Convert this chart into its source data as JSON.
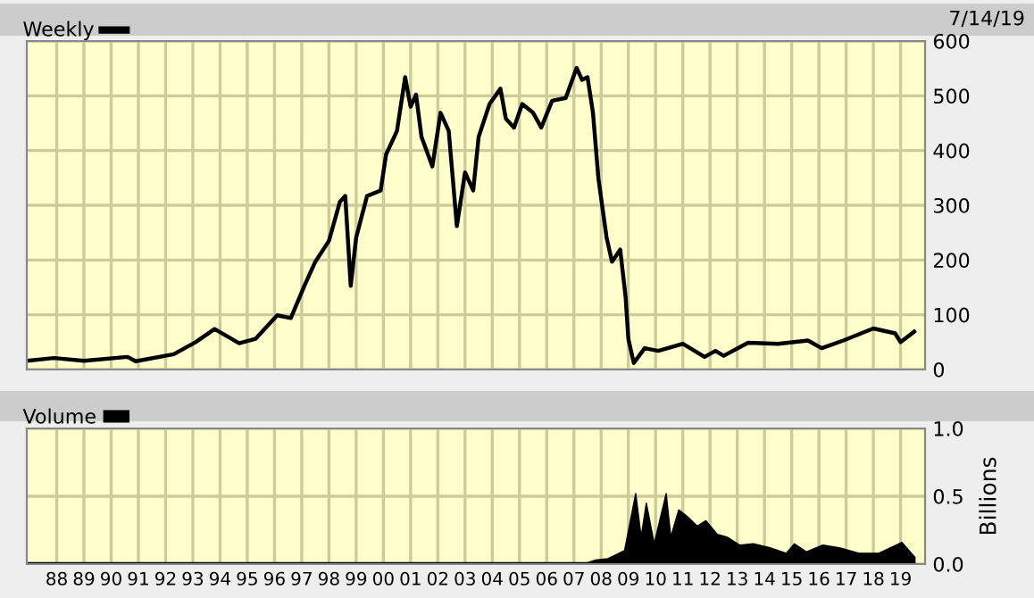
{
  "chart_data": [
    {
      "type": "line",
      "annotations": [
        "7/14/19"
      ],
      "legend": "top left",
      "grid": true,
      "tick_labels": "y",
      "xlim": [
        1986.9,
        2019.9
      ],
      "ylim": [
        0,
        600
      ],
      "yticks": [
        0,
        100,
        200,
        300,
        400,
        500,
        600
      ],
      "xticks": [
        {
          "value": 1988,
          "label": null
        },
        {
          "value": 1989,
          "label": null
        },
        {
          "value": 1990,
          "label": null
        },
        {
          "value": 1991,
          "label": null
        },
        {
          "value": 1992,
          "label": null
        },
        {
          "value": 1993,
          "label": null
        },
        {
          "value": 1994,
          "label": null
        },
        {
          "value": 1995,
          "label": null
        },
        {
          "value": 1996,
          "label": null
        },
        {
          "value": 1997,
          "label": null
        },
        {
          "value": 1998,
          "label": null
        },
        {
          "value": 1999,
          "label": null
        },
        {
          "value": 2000,
          "label": null
        },
        {
          "value": 2001,
          "label": null
        },
        {
          "value": 2002,
          "label": null
        },
        {
          "value": 2003,
          "label": null
        },
        {
          "value": 2004,
          "label": null
        },
        {
          "value": 2005,
          "label": null
        },
        {
          "value": 2006,
          "label": null
        },
        {
          "value": 2007,
          "label": null
        },
        {
          "value": 2008,
          "label": null
        },
        {
          "value": 2009,
          "label": null
        },
        {
          "value": 2010,
          "label": null
        },
        {
          "value": 2011,
          "label": null
        },
        {
          "value": 2012,
          "label": null
        },
        {
          "value": 2013,
          "label": null
        },
        {
          "value": 2014,
          "label": null
        },
        {
          "value": 2015,
          "label": null
        },
        {
          "value": 2016,
          "label": null
        },
        {
          "value": 2017,
          "label": null
        },
        {
          "value": 2018,
          "label": null
        },
        {
          "value": 2019,
          "label": null
        }
      ],
      "series": [
        {
          "name": "Weekly",
          "color": "#000000",
          "x": [
            1986.9,
            1987.9,
            1989.0,
            1990.6,
            1990.9,
            1992.3,
            1993.1,
            1993.8,
            1994.7,
            1995.3,
            1996.1,
            1996.6,
            1997.1,
            1997.5,
            1998.0,
            1998.4,
            1998.6,
            1998.8,
            1999.0,
            1999.4,
            1999.9,
            2000.1,
            2000.5,
            2000.8,
            2001.0,
            2001.2,
            2001.4,
            2001.8,
            2002.1,
            2002.4,
            2002.7,
            2003.0,
            2003.3,
            2003.5,
            2003.9,
            2004.3,
            2004.5,
            2004.8,
            2005.1,
            2005.5,
            2005.8,
            2006.2,
            2006.7,
            2007.1,
            2007.3,
            2007.5,
            2007.7,
            2007.9,
            2008.2,
            2008.4,
            2008.7,
            2008.9,
            2009.0,
            2009.2,
            2009.6,
            2010.1,
            2011.0,
            2011.8,
            2012.2,
            2012.5,
            2013.4,
            2014.5,
            2015.6,
            2016.1,
            2016.9,
            2018.0,
            2018.8,
            2019.0,
            2019.5
          ],
          "values": [
            16,
            21,
            16,
            23,
            15,
            28,
            50,
            74,
            48,
            56,
            99,
            94,
            153,
            197,
            235,
            306,
            317,
            153,
            241,
            317,
            327,
            393,
            436,
            534,
            480,
            502,
            425,
            371,
            469,
            436,
            262,
            360,
            327,
            425,
            485,
            513,
            458,
            442,
            485,
            469,
            442,
            491,
            496,
            551,
            529,
            534,
            469,
            349,
            241,
            197,
            219,
            132,
            56,
            12,
            39,
            34,
            47,
            23,
            34,
            25,
            49,
            47,
            53,
            39,
            53,
            75,
            66,
            50,
            69
          ]
        }
      ]
    },
    {
      "type": "area",
      "legend": "top left",
      "grid": true,
      "ylabel": "Billions",
      "xlim": [
        1986.9,
        2019.9
      ],
      "ylim": [
        0,
        1.0
      ],
      "yticks": [
        {
          "value": 0,
          "label": "0.0"
        },
        {
          "value": 0.5,
          "label": "0.5"
        },
        {
          "value": 1.0,
          "label": "1.0"
        }
      ],
      "xticks": [
        {
          "value": 1988,
          "label": "88"
        },
        {
          "value": 1989,
          "label": "89"
        },
        {
          "value": 1990,
          "label": "90"
        },
        {
          "value": 1991,
          "label": "91"
        },
        {
          "value": 1992,
          "label": "92"
        },
        {
          "value": 1993,
          "label": "93"
        },
        {
          "value": 1994,
          "label": "94"
        },
        {
          "value": 1995,
          "label": "95"
        },
        {
          "value": 1996,
          "label": "96"
        },
        {
          "value": 1997,
          "label": "97"
        },
        {
          "value": 1998,
          "label": "98"
        },
        {
          "value": 1999,
          "label": "99"
        },
        {
          "value": 2000,
          "label": "00"
        },
        {
          "value": 2001,
          "label": "01"
        },
        {
          "value": 2002,
          "label": "02"
        },
        {
          "value": 2003,
          "label": "03"
        },
        {
          "value": 2004,
          "label": "04"
        },
        {
          "value": 2005,
          "label": "05"
        },
        {
          "value": 2006,
          "label": "06"
        },
        {
          "value": 2007,
          "label": "07"
        },
        {
          "value": 2008,
          "label": "08"
        },
        {
          "value": 2009,
          "label": "09"
        },
        {
          "value": 2010,
          "label": "10"
        },
        {
          "value": 2011,
          "label": "11"
        },
        {
          "value": 2012,
          "label": "12"
        },
        {
          "value": 2013,
          "label": "13"
        },
        {
          "value": 2014,
          "label": "14"
        },
        {
          "value": 2015,
          "label": "15"
        },
        {
          "value": 2016,
          "label": "16"
        },
        {
          "value": 2017,
          "label": "17"
        },
        {
          "value": 2018,
          "label": "18"
        },
        {
          "value": 2019,
          "label": "19"
        }
      ],
      "series": [
        {
          "name": "Volume",
          "color": "#000000",
          "x": [
            1986.9,
            2007.5,
            2007.8,
            2008.25,
            2008.86,
            2009.27,
            2009.47,
            2009.66,
            2009.95,
            2010.39,
            2010.56,
            2010.85,
            2011.17,
            2011.53,
            2011.85,
            2012.26,
            2012.62,
            2013.1,
            2013.59,
            2014.2,
            2014.8,
            2015.1,
            2015.54,
            2016.14,
            2016.75,
            2017.48,
            2018.2,
            2019.05,
            2019.53
          ],
          "values": [
            0.01,
            0.01,
            0.03,
            0.04,
            0.1,
            0.52,
            0.2,
            0.45,
            0.15,
            0.52,
            0.2,
            0.4,
            0.35,
            0.28,
            0.32,
            0.22,
            0.2,
            0.14,
            0.15,
            0.12,
            0.08,
            0.15,
            0.09,
            0.14,
            0.12,
            0.08,
            0.08,
            0.16,
            0.05
          ]
        }
      ]
    }
  ]
}
